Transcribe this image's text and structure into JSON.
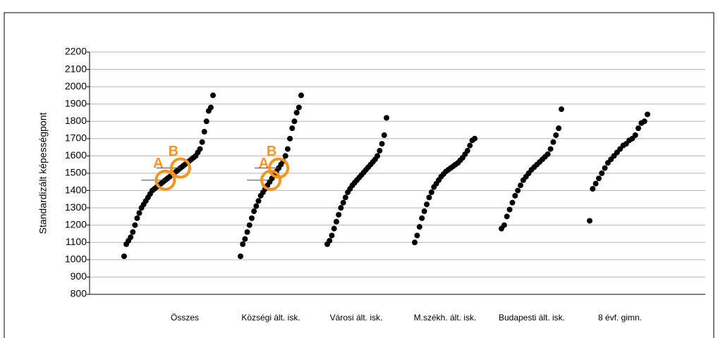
{
  "chart_data": {
    "type": "scatter",
    "ylabel": "Standardizált képességpont",
    "categories": [
      "Összes",
      "Községi ált. isk.",
      "Városi ált. isk.",
      "M.székh. ált. isk.",
      "Budapesti ált. isk.",
      "8 évf. gimn."
    ],
    "values": [
      [
        1020,
        1090,
        1110,
        1130,
        1160,
        1200,
        1240,
        1270,
        1300,
        1320,
        1340,
        1360,
        1380,
        1400,
        1410,
        1420,
        1430,
        1440,
        1450,
        1460,
        1470,
        1480,
        1490,
        1500,
        1510,
        1520,
        1530,
        1540,
        1550,
        1560,
        1570,
        1580,
        1590,
        1600,
        1620,
        1640,
        1680,
        1740,
        1800,
        1860,
        1880,
        1950
      ],
      [
        1020,
        1090,
        1120,
        1160,
        1200,
        1240,
        1280,
        1310,
        1340,
        1370,
        1390,
        1410,
        1430,
        1450,
        1470,
        1490,
        1510,
        1530,
        1550,
        1570,
        1600,
        1640,
        1700,
        1760,
        1800,
        1850,
        1880,
        1950
      ],
      [
        1090,
        1110,
        1140,
        1180,
        1220,
        1260,
        1300,
        1330,
        1360,
        1390,
        1410,
        1430,
        1445,
        1460,
        1475,
        1490,
        1505,
        1520,
        1535,
        1550,
        1565,
        1580,
        1600,
        1630,
        1670,
        1720,
        1820
      ],
      [
        1100,
        1140,
        1190,
        1240,
        1280,
        1320,
        1360,
        1390,
        1420,
        1440,
        1460,
        1480,
        1495,
        1510,
        1520,
        1530,
        1540,
        1550,
        1560,
        1575,
        1590,
        1610,
        1630,
        1660,
        1690,
        1700
      ],
      [
        1180,
        1200,
        1250,
        1290,
        1330,
        1370,
        1400,
        1430,
        1460,
        1480,
        1500,
        1520,
        1535,
        1550,
        1565,
        1580,
        1595,
        1610,
        1640,
        1680,
        1720,
        1760,
        1870
      ],
      [
        1225,
        1410,
        1440,
        1470,
        1500,
        1530,
        1560,
        1580,
        1600,
        1620,
        1640,
        1660,
        1670,
        1690,
        1700,
        1720,
        1760,
        1790,
        1800,
        1840
      ]
    ],
    "color": "#000000",
    "ylim": [
      800,
      2200
    ],
    "yticks": [
      800,
      900,
      1000,
      1100,
      1200,
      1300,
      1400,
      1500,
      1600,
      1700,
      1800,
      1900,
      2000,
      2100,
      2200
    ],
    "grid": true,
    "annotations": [
      {
        "label": "A",
        "category": "Összes",
        "value": 1460
      },
      {
        "label": "B",
        "category": "Összes",
        "value": 1530
      },
      {
        "label": "A",
        "category": "Községi ált. isk.",
        "value": 1460
      },
      {
        "label": "B",
        "category": "Községi ált. isk.",
        "value": 1530
      }
    ],
    "annotation_color": "#f7941d"
  }
}
